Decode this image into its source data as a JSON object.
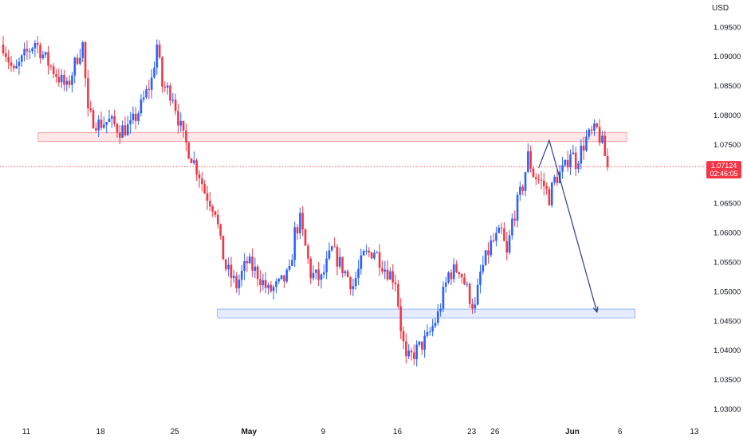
{
  "colors": {
    "up": "#2962ff",
    "down": "#f23645",
    "axis_text": "#131722",
    "price_line": "#f23645",
    "price_badge_bg": "#f23645",
    "price_badge_text": "#ffffff",
    "resistance_fill": "rgba(242,54,69,0.12)",
    "resistance_stroke": "#f23645",
    "support_fill": "rgba(41,98,255,0.12)",
    "support_stroke": "#2962ff",
    "projection": "#2a3d8f"
  },
  "chart_data": {
    "type": "candlestick",
    "currency": "USD",
    "ylim": [
      1.0275,
      1.0985
    ],
    "y_ticks": [
      "1.03000",
      "1.03500",
      "1.04000",
      "1.04500",
      "1.05000",
      "1.05500",
      "1.06000",
      "1.06500",
      "1.07000",
      "1.07500",
      "1.08000",
      "1.08500",
      "1.09000",
      "1.09500"
    ],
    "x_ticks": [
      "11",
      "18",
      "25",
      "May",
      "9",
      "16",
      "23",
      "26",
      "Jun",
      "6",
      "13"
    ],
    "grid": false,
    "last_price": "1.07124",
    "countdown": "02:46:05",
    "zones": [
      {
        "kind": "resistance",
        "price_low": 1.0755,
        "price_high": 1.077
      },
      {
        "kind": "support",
        "price_low": 1.0455,
        "price_high": 1.047
      }
    ],
    "projection": [
      {
        "day": 50.5,
        "price": 1.071
      },
      {
        "day": 51.5,
        "price": 1.0757
      },
      {
        "day": 56.0,
        "price": 1.0465
      }
    ],
    "trend_points": [
      [
        0,
        1.092
      ],
      [
        1,
        1.087
      ],
      [
        2,
        1.09
      ],
      [
        3,
        1.0925
      ],
      [
        4,
        1.0895
      ],
      [
        5,
        1.087
      ],
      [
        6,
        1.0845
      ],
      [
        7,
        1.09
      ],
      [
        7.5,
        1.092
      ],
      [
        8,
        1.08
      ],
      [
        9,
        1.0785
      ],
      [
        10,
        1.079
      ],
      [
        11,
        1.0775
      ],
      [
        12,
        1.078
      ],
      [
        13,
        1.0815
      ],
      [
        14,
        1.086
      ],
      [
        14.5,
        1.092
      ],
      [
        15,
        1.085
      ],
      [
        16,
        1.0835
      ],
      [
        16.5,
        1.0795
      ],
      [
        17,
        1.076
      ],
      [
        17.5,
        1.074
      ],
      [
        18,
        1.072
      ],
      [
        18.5,
        1.07
      ],
      [
        19,
        1.067
      ],
      [
        20,
        1.064
      ],
      [
        20.5,
        1.058
      ],
      [
        21,
        1.054
      ],
      [
        22,
        1.051
      ],
      [
        23,
        1.055
      ],
      [
        24,
        1.053
      ],
      [
        25,
        1.05
      ],
      [
        26,
        1.051
      ],
      [
        27,
        1.053
      ],
      [
        27.5,
        1.06
      ],
      [
        28,
        1.062
      ],
      [
        29,
        1.053
      ],
      [
        30,
        1.052
      ],
      [
        31,
        1.057
      ],
      [
        32,
        1.054
      ],
      [
        33,
        1.051
      ],
      [
        34,
        1.056
      ],
      [
        35,
        1.057
      ],
      [
        36,
        1.054
      ],
      [
        37,
        1.052
      ],
      [
        37.5,
        1.044
      ],
      [
        38,
        1.038
      ],
      [
        39,
        1.04
      ],
      [
        40,
        1.042
      ],
      [
        41,
        1.046
      ],
      [
        42,
        1.053
      ],
      [
        43,
        1.054
      ],
      [
        44,
        1.049
      ],
      [
        44.5,
        1.047
      ],
      [
        45,
        1.053
      ],
      [
        46,
        1.058
      ],
      [
        47,
        1.06
      ],
      [
        47.5,
        1.056
      ],
      [
        48,
        1.062
      ],
      [
        49,
        1.068
      ],
      [
        49.5,
        1.073
      ],
      [
        50,
        1.07
      ],
      [
        51,
        1.068
      ],
      [
        51.5,
        1.066
      ],
      [
        52,
        1.069
      ],
      [
        53,
        1.071
      ],
      [
        53.5,
        1.074
      ],
      [
        54,
        1.072
      ],
      [
        55,
        1.076
      ],
      [
        56,
        1.0775
      ],
      [
        56.5,
        1.075
      ],
      [
        57,
        1.0712
      ]
    ]
  }
}
